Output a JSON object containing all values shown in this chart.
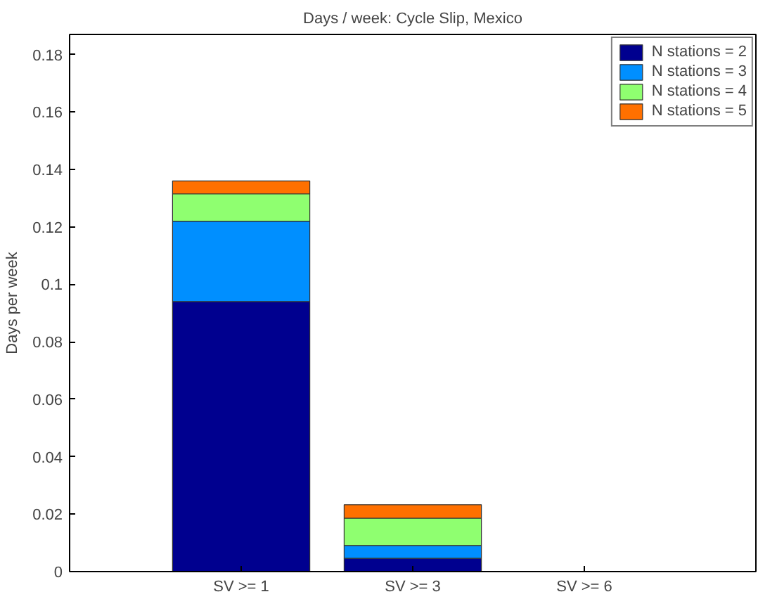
{
  "chart_data": {
    "type": "bar",
    "title": "Days / week: Cycle Slip, Mexico",
    "ylabel": "Days per week",
    "categories": [
      "SV >= 1",
      "SV >= 3",
      "SV >= 6"
    ],
    "stacked": true,
    "series": [
      {
        "name": "N stations = 2",
        "color": "#00008f",
        "values": [
          0.094,
          0.0046,
          0
        ]
      },
      {
        "name": "N stations = 3",
        "color": "#008fff",
        "values": [
          0.028,
          0.0045,
          0
        ]
      },
      {
        "name": "N stations = 4",
        "color": "#8fff70",
        "values": [
          0.0095,
          0.0095,
          0
        ]
      },
      {
        "name": "N stations = 5",
        "color": "#ff7000",
        "values": [
          0.0045,
          0.0047,
          0
        ]
      }
    ],
    "ylim": [
      0,
      0.187
    ],
    "yticks": [
      0,
      0.02,
      0.04,
      0.06,
      0.08,
      0.1,
      0.12,
      0.14,
      0.16,
      0.18
    ],
    "legend": "top right",
    "grid": false
  }
}
